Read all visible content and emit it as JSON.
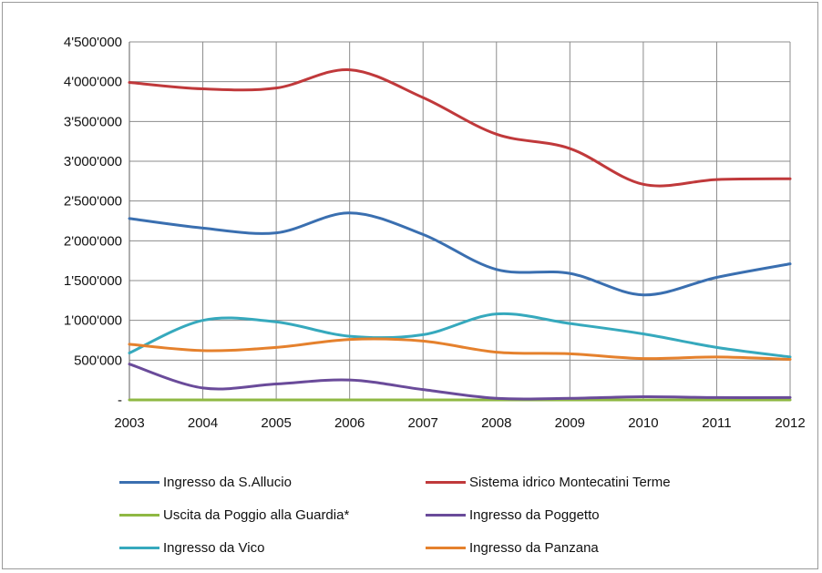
{
  "chart_data": {
    "type": "line",
    "title": "",
    "xlabel": "",
    "ylabel": "",
    "x": [
      "2003",
      "2004",
      "2005",
      "2006",
      "2007",
      "2008",
      "2009",
      "2010",
      "2011",
      "2012"
    ],
    "ylim": [
      0,
      4500000
    ],
    "y_ticks": [
      {
        "value": 0,
        "label": "-"
      },
      {
        "value": 500000,
        "label": "500'000"
      },
      {
        "value": 1000000,
        "label": "1'000'000"
      },
      {
        "value": 1500000,
        "label": "1'500'000"
      },
      {
        "value": 2000000,
        "label": "2'000'000"
      },
      {
        "value": 2500000,
        "label": "2'500'000"
      },
      {
        "value": 3000000,
        "label": "3'000'000"
      },
      {
        "value": 3500000,
        "label": "3'500'000"
      },
      {
        "value": 4000000,
        "label": "4'000'000"
      },
      {
        "value": 4500000,
        "label": "4'500'000"
      }
    ],
    "grid": "horizontal and vertical",
    "smooth": true,
    "legend_position": "bottom",
    "series": [
      {
        "name": "Ingresso da S.Allucio",
        "color": "#3a6fb0",
        "values": [
          2280000,
          2160000,
          2100000,
          2350000,
          2080000,
          1640000,
          1590000,
          1320000,
          1540000,
          1710000
        ]
      },
      {
        "name": "Sistema idrico Montecatini Terme",
        "color": "#c0393b",
        "values": [
          3990000,
          3910000,
          3920000,
          4150000,
          3800000,
          3340000,
          3160000,
          2710000,
          2770000,
          2780000
        ]
      },
      {
        "name": "Uscita da Poggio alla Guardia*",
        "color": "#8fb843",
        "values": [
          0,
          0,
          0,
          0,
          0,
          0,
          0,
          0,
          0,
          0
        ]
      },
      {
        "name": "Ingresso da Poggetto",
        "color": "#6a4b9a",
        "values": [
          450000,
          150000,
          200000,
          250000,
          130000,
          20000,
          20000,
          40000,
          30000,
          30000
        ]
      },
      {
        "name": "Ingresso da Vico",
        "color": "#36a9bd",
        "values": [
          590000,
          1000000,
          980000,
          800000,
          820000,
          1080000,
          960000,
          830000,
          660000,
          540000
        ]
      },
      {
        "name": "Ingresso da Panzana",
        "color": "#e5812d",
        "values": [
          700000,
          620000,
          660000,
          760000,
          740000,
          600000,
          580000,
          520000,
          540000,
          510000
        ]
      }
    ]
  },
  "legend": {
    "items": [
      {
        "label": "Ingresso da S.Allucio",
        "color": "#3a6fb0"
      },
      {
        "label": "Sistema idrico Montecatini Terme",
        "color": "#c0393b"
      },
      {
        "label": "Uscita da Poggio alla Guardia*",
        "color": "#8fb843"
      },
      {
        "label": "Ingresso da Poggetto",
        "color": "#6a4b9a"
      },
      {
        "label": "Ingresso da Vico",
        "color": "#36a9bd"
      },
      {
        "label": "Ingresso da Panzana",
        "color": "#e5812d"
      }
    ]
  }
}
